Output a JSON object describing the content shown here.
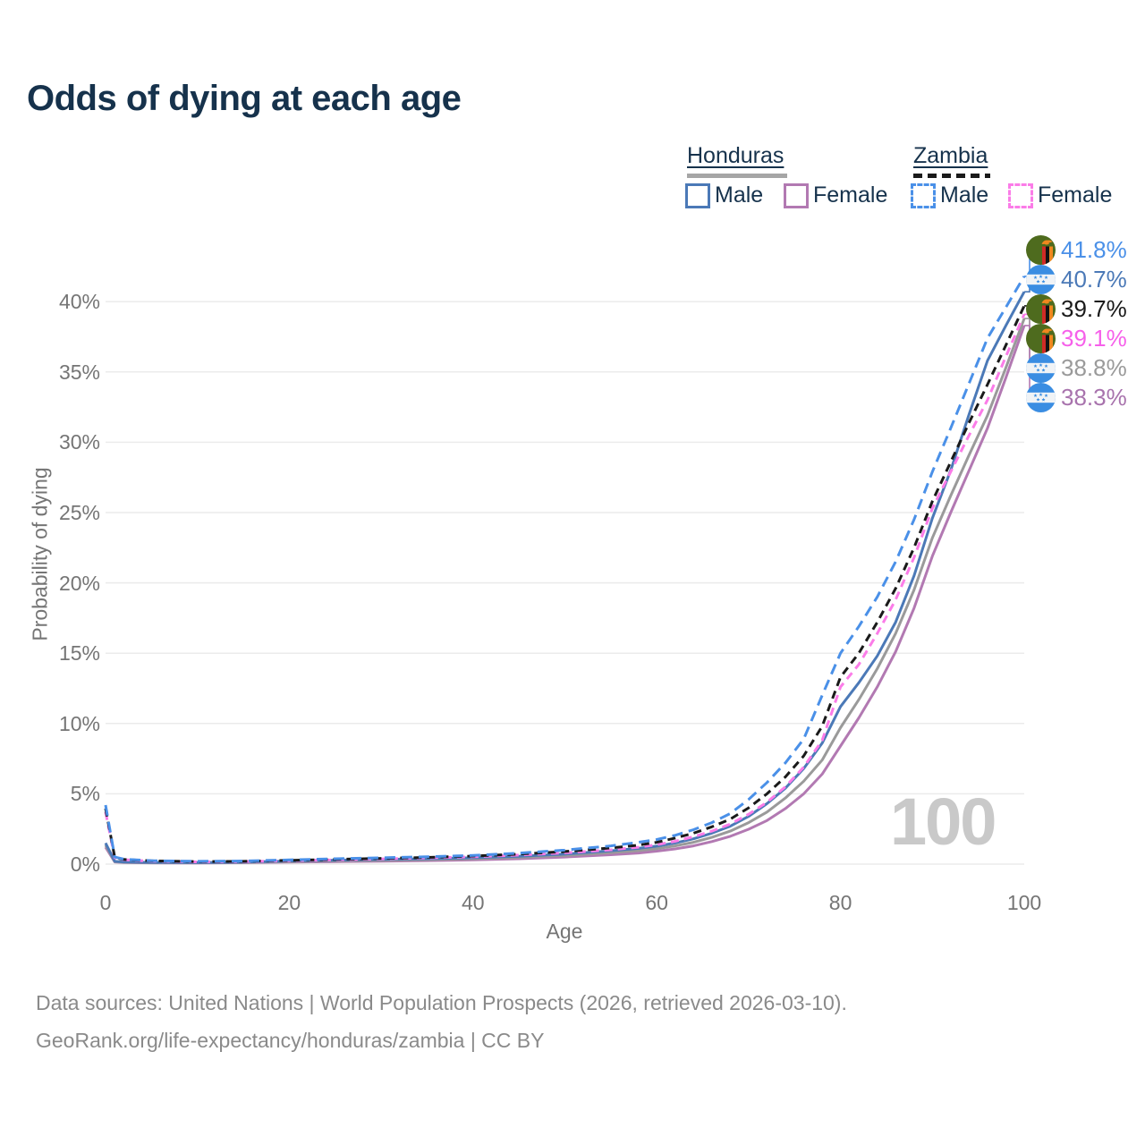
{
  "title": "Odds of dying at each age",
  "watermark_age": "100",
  "legend": {
    "groups": [
      {
        "name": "Honduras",
        "line_style": "solid",
        "rule_color": "#a6a6a6",
        "items": [
          {
            "label": "Male",
            "color": "#4b79b7"
          },
          {
            "label": "Female",
            "color": "#b279b2"
          }
        ]
      },
      {
        "name": "Zambia",
        "line_style": "dashed",
        "rule_color": "#1a1a1a",
        "items": [
          {
            "label": "Male",
            "color": "#4a90e8"
          },
          {
            "label": "Female",
            "color": "#fb7ce8"
          }
        ]
      }
    ]
  },
  "footer": {
    "line1": "Data sources: United Nations | World Population Prospects (2026, retrieved 2026-03-10).",
    "line2": "GeoRank.org/life-expectancy/honduras/zambia | CC BY"
  },
  "chart_data": {
    "type": "line",
    "title": "Odds of dying at each age",
    "xlabel": "Age",
    "ylabel": "Probability of dying",
    "xlim": [
      0,
      100
    ],
    "ylim": [
      0,
      43
    ],
    "grid": true,
    "legend_position": "top-right",
    "x_ticks": {
      "values": [
        0,
        20,
        40,
        60,
        80,
        100
      ],
      "labels": [
        "0",
        "20",
        "40",
        "60",
        "80",
        "100"
      ]
    },
    "y_ticks": {
      "values": [
        0,
        5,
        10,
        15,
        20,
        25,
        30,
        35,
        40
      ],
      "labels": [
        "0%",
        "5%",
        "10%",
        "15%",
        "20%",
        "25%",
        "30%",
        "35%",
        "40%"
      ]
    },
    "ages": [
      0,
      1,
      2,
      5,
      10,
      15,
      20,
      25,
      30,
      35,
      40,
      45,
      50,
      55,
      58,
      60,
      62,
      64,
      66,
      68,
      70,
      72,
      74,
      76,
      78,
      80,
      82,
      84,
      86,
      88,
      90,
      92,
      94,
      96,
      98,
      100
    ],
    "series": [
      {
        "name": "Zambia Male",
        "country": "zambia",
        "sex": "male",
        "color": "#4a90e8",
        "dash": "dashed",
        "end_label": "41.8%",
        "label_color": "#4a90e8",
        "values": [
          4.2,
          0.5,
          0.35,
          0.25,
          0.2,
          0.22,
          0.3,
          0.38,
          0.45,
          0.52,
          0.62,
          0.78,
          1.0,
          1.3,
          1.55,
          1.75,
          2.05,
          2.45,
          2.95,
          3.6,
          4.6,
          5.8,
          7.2,
          8.9,
          12.0,
          15.0,
          16.9,
          19.0,
          21.5,
          24.5,
          27.9,
          31.0,
          34.2,
          37.4,
          39.6,
          41.8
        ]
      },
      {
        "name": "Honduras Male",
        "country": "honduras",
        "sex": "male",
        "color": "#4b79b7",
        "dash": "solid",
        "end_label": "40.7%",
        "label_color": "#4b79b7",
        "values": [
          1.5,
          0.2,
          0.15,
          0.12,
          0.11,
          0.14,
          0.22,
          0.28,
          0.33,
          0.38,
          0.45,
          0.56,
          0.72,
          0.95,
          1.12,
          1.28,
          1.5,
          1.8,
          2.2,
          2.7,
          3.4,
          4.3,
          5.4,
          6.8,
          8.6,
          11.2,
          12.9,
          14.8,
          17.2,
          20.5,
          24.6,
          28.0,
          32.0,
          35.8,
          38.3,
          40.7
        ]
      },
      {
        "name": "Zambia",
        "country": "zambia",
        "sex": "all",
        "color": "#1a1a1a",
        "dash": "dashed",
        "end_label": "39.7%",
        "label_color": "#1a1a1a",
        "values": [
          3.95,
          0.48,
          0.33,
          0.23,
          0.18,
          0.2,
          0.27,
          0.34,
          0.41,
          0.48,
          0.57,
          0.71,
          0.9,
          1.15,
          1.35,
          1.55,
          1.85,
          2.2,
          2.65,
          3.2,
          4.0,
          5.0,
          6.2,
          7.7,
          9.8,
          13.3,
          15.0,
          17.2,
          19.6,
          22.5,
          25.8,
          28.6,
          31.4,
          34.1,
          36.9,
          39.7
        ]
      },
      {
        "name": "Zambia Female",
        "country": "zambia",
        "sex": "female",
        "color": "#fb7ce8",
        "dash": "dashed",
        "end_label": "39.1%",
        "label_color": "#f660ea",
        "values": [
          3.7,
          0.45,
          0.31,
          0.21,
          0.16,
          0.18,
          0.24,
          0.3,
          0.37,
          0.44,
          0.52,
          0.64,
          0.8,
          1.02,
          1.2,
          1.38,
          1.62,
          1.95,
          2.35,
          2.85,
          3.55,
          4.4,
          5.5,
          6.9,
          8.8,
          12.6,
          14.2,
          16.4,
          18.8,
          21.8,
          25.3,
          27.9,
          30.5,
          33.0,
          36.1,
          39.1
        ]
      },
      {
        "name": "Honduras",
        "country": "honduras",
        "sex": "all",
        "color": "#9a9a9a",
        "dash": "solid",
        "end_label": "38.8%",
        "label_color": "#9a9a9a",
        "values": [
          1.35,
          0.17,
          0.13,
          0.1,
          0.1,
          0.12,
          0.18,
          0.23,
          0.27,
          0.32,
          0.38,
          0.48,
          0.62,
          0.82,
          0.96,
          1.1,
          1.3,
          1.55,
          1.9,
          2.35,
          2.95,
          3.7,
          4.7,
          5.9,
          7.4,
          9.7,
          11.7,
          13.9,
          16.4,
          19.5,
          23.2,
          26.2,
          29.1,
          31.9,
          35.3,
          38.8
        ]
      },
      {
        "name": "Honduras Female",
        "country": "honduras",
        "sex": "female",
        "color": "#b279b2",
        "dash": "solid",
        "end_label": "38.3%",
        "label_color": "#a873ad",
        "values": [
          1.2,
          0.15,
          0.11,
          0.09,
          0.08,
          0.1,
          0.14,
          0.18,
          0.21,
          0.25,
          0.3,
          0.38,
          0.5,
          0.67,
          0.79,
          0.92,
          1.08,
          1.3,
          1.6,
          1.98,
          2.48,
          3.1,
          3.95,
          5.0,
          6.4,
          8.4,
          10.4,
          12.6,
          15.1,
          18.2,
          21.9,
          25.0,
          28.0,
          31.0,
          34.6,
          38.3
        ]
      }
    ]
  }
}
